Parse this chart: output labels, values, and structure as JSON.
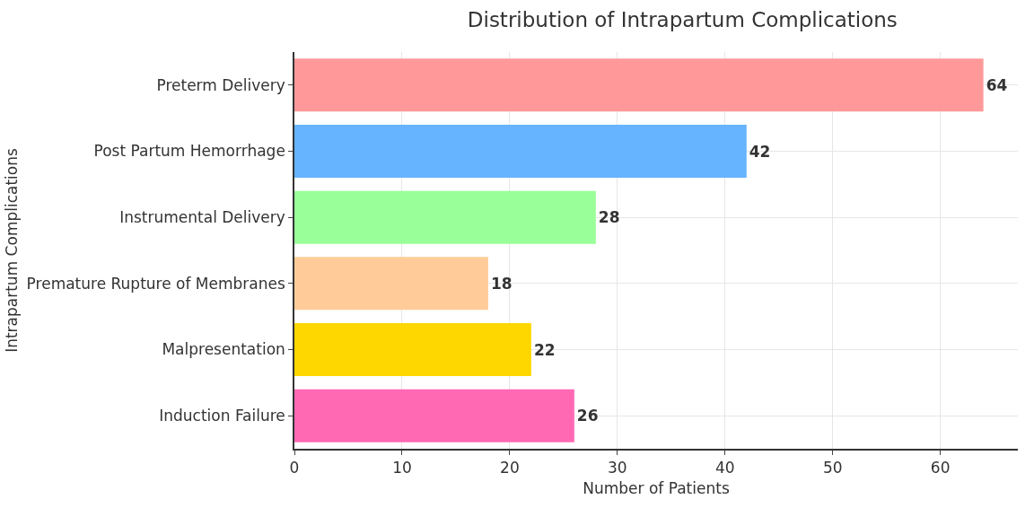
{
  "chart_data": {
    "type": "bar",
    "orientation": "horizontal",
    "title": "Distribution of Intrapartum Complications",
    "xlabel": "Number of Patients",
    "ylabel": "Intrapartum Complications",
    "categories": [
      "Preterm Delivery",
      "Post Partum Hemorrhage",
      "Instrumental Delivery",
      "Premature Rupture of Membranes",
      "Malpresentation",
      "Induction Failure"
    ],
    "values": [
      64,
      42,
      28,
      18,
      22,
      26
    ],
    "colors": [
      "#ff9999",
      "#66b3ff",
      "#99ff99",
      "#ffcc99",
      "#ffd700",
      "#ff69b4"
    ],
    "xlim": [
      0,
      67.2
    ],
    "xticks": [
      0,
      10,
      20,
      30,
      40,
      50,
      60
    ],
    "grid": true,
    "data_labels": true
  }
}
